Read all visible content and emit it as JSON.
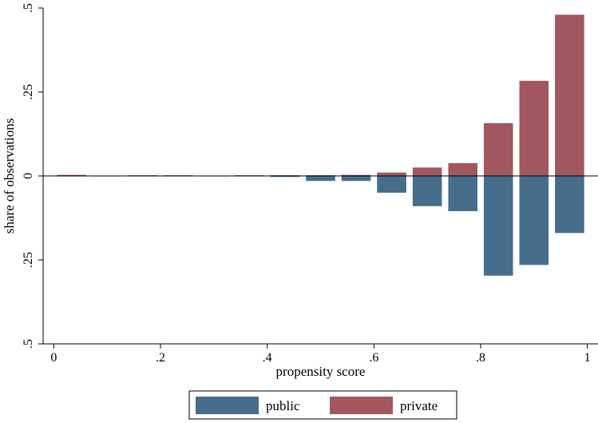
{
  "chart_data": {
    "type": "bar",
    "subtype": "mirrored-histogram",
    "xlabel": "propensity score",
    "ylabel": "share of observations",
    "xlim": [
      -0.02,
      1.02
    ],
    "ylim": [
      -0.5,
      0.5
    ],
    "x_ticks": [
      {
        "value": 0,
        "label": "0"
      },
      {
        "value": 0.2,
        "label": ".2"
      },
      {
        "value": 0.4,
        "label": ".4"
      },
      {
        "value": 0.6,
        "label": ".6"
      },
      {
        "value": 0.8,
        "label": ".8"
      },
      {
        "value": 1.0,
        "label": "1"
      }
    ],
    "y_ticks": [
      {
        "value": 0.5,
        "label": ".5"
      },
      {
        "value": 0.25,
        "label": ".25"
      },
      {
        "value": 0,
        "label": "0"
      },
      {
        "value": -0.25,
        "label": ".25"
      },
      {
        "value": -0.5,
        "label": ".5"
      }
    ],
    "bin_width": 0.0667,
    "bin_centers": [
      0.0333,
      0.1,
      0.1667,
      0.2333,
      0.3,
      0.3667,
      0.4333,
      0.5,
      0.5667,
      0.6333,
      0.7,
      0.7667,
      0.8333,
      0.9,
      0.9667
    ],
    "series": [
      {
        "name": "public",
        "color": "#466d8c",
        "direction": "down",
        "values": [
          0.001,
          0.0005,
          0.0005,
          0.0005,
          0.0005,
          0.0005,
          0.003,
          0.015,
          0.015,
          0.05,
          0.09,
          0.105,
          0.297,
          0.265,
          0.17
        ]
      },
      {
        "name": "private",
        "color": "#a2565d",
        "direction": "up",
        "values": [
          0.003,
          0.001,
          0.002,
          0.002,
          0.001,
          0.002,
          0.002,
          0.002,
          0.003,
          0.01,
          0.025,
          0.038,
          0.157,
          0.283,
          0.48
        ]
      }
    ],
    "legend": {
      "placement": "bottom",
      "entries": [
        "public",
        "private"
      ]
    },
    "grid": false
  }
}
